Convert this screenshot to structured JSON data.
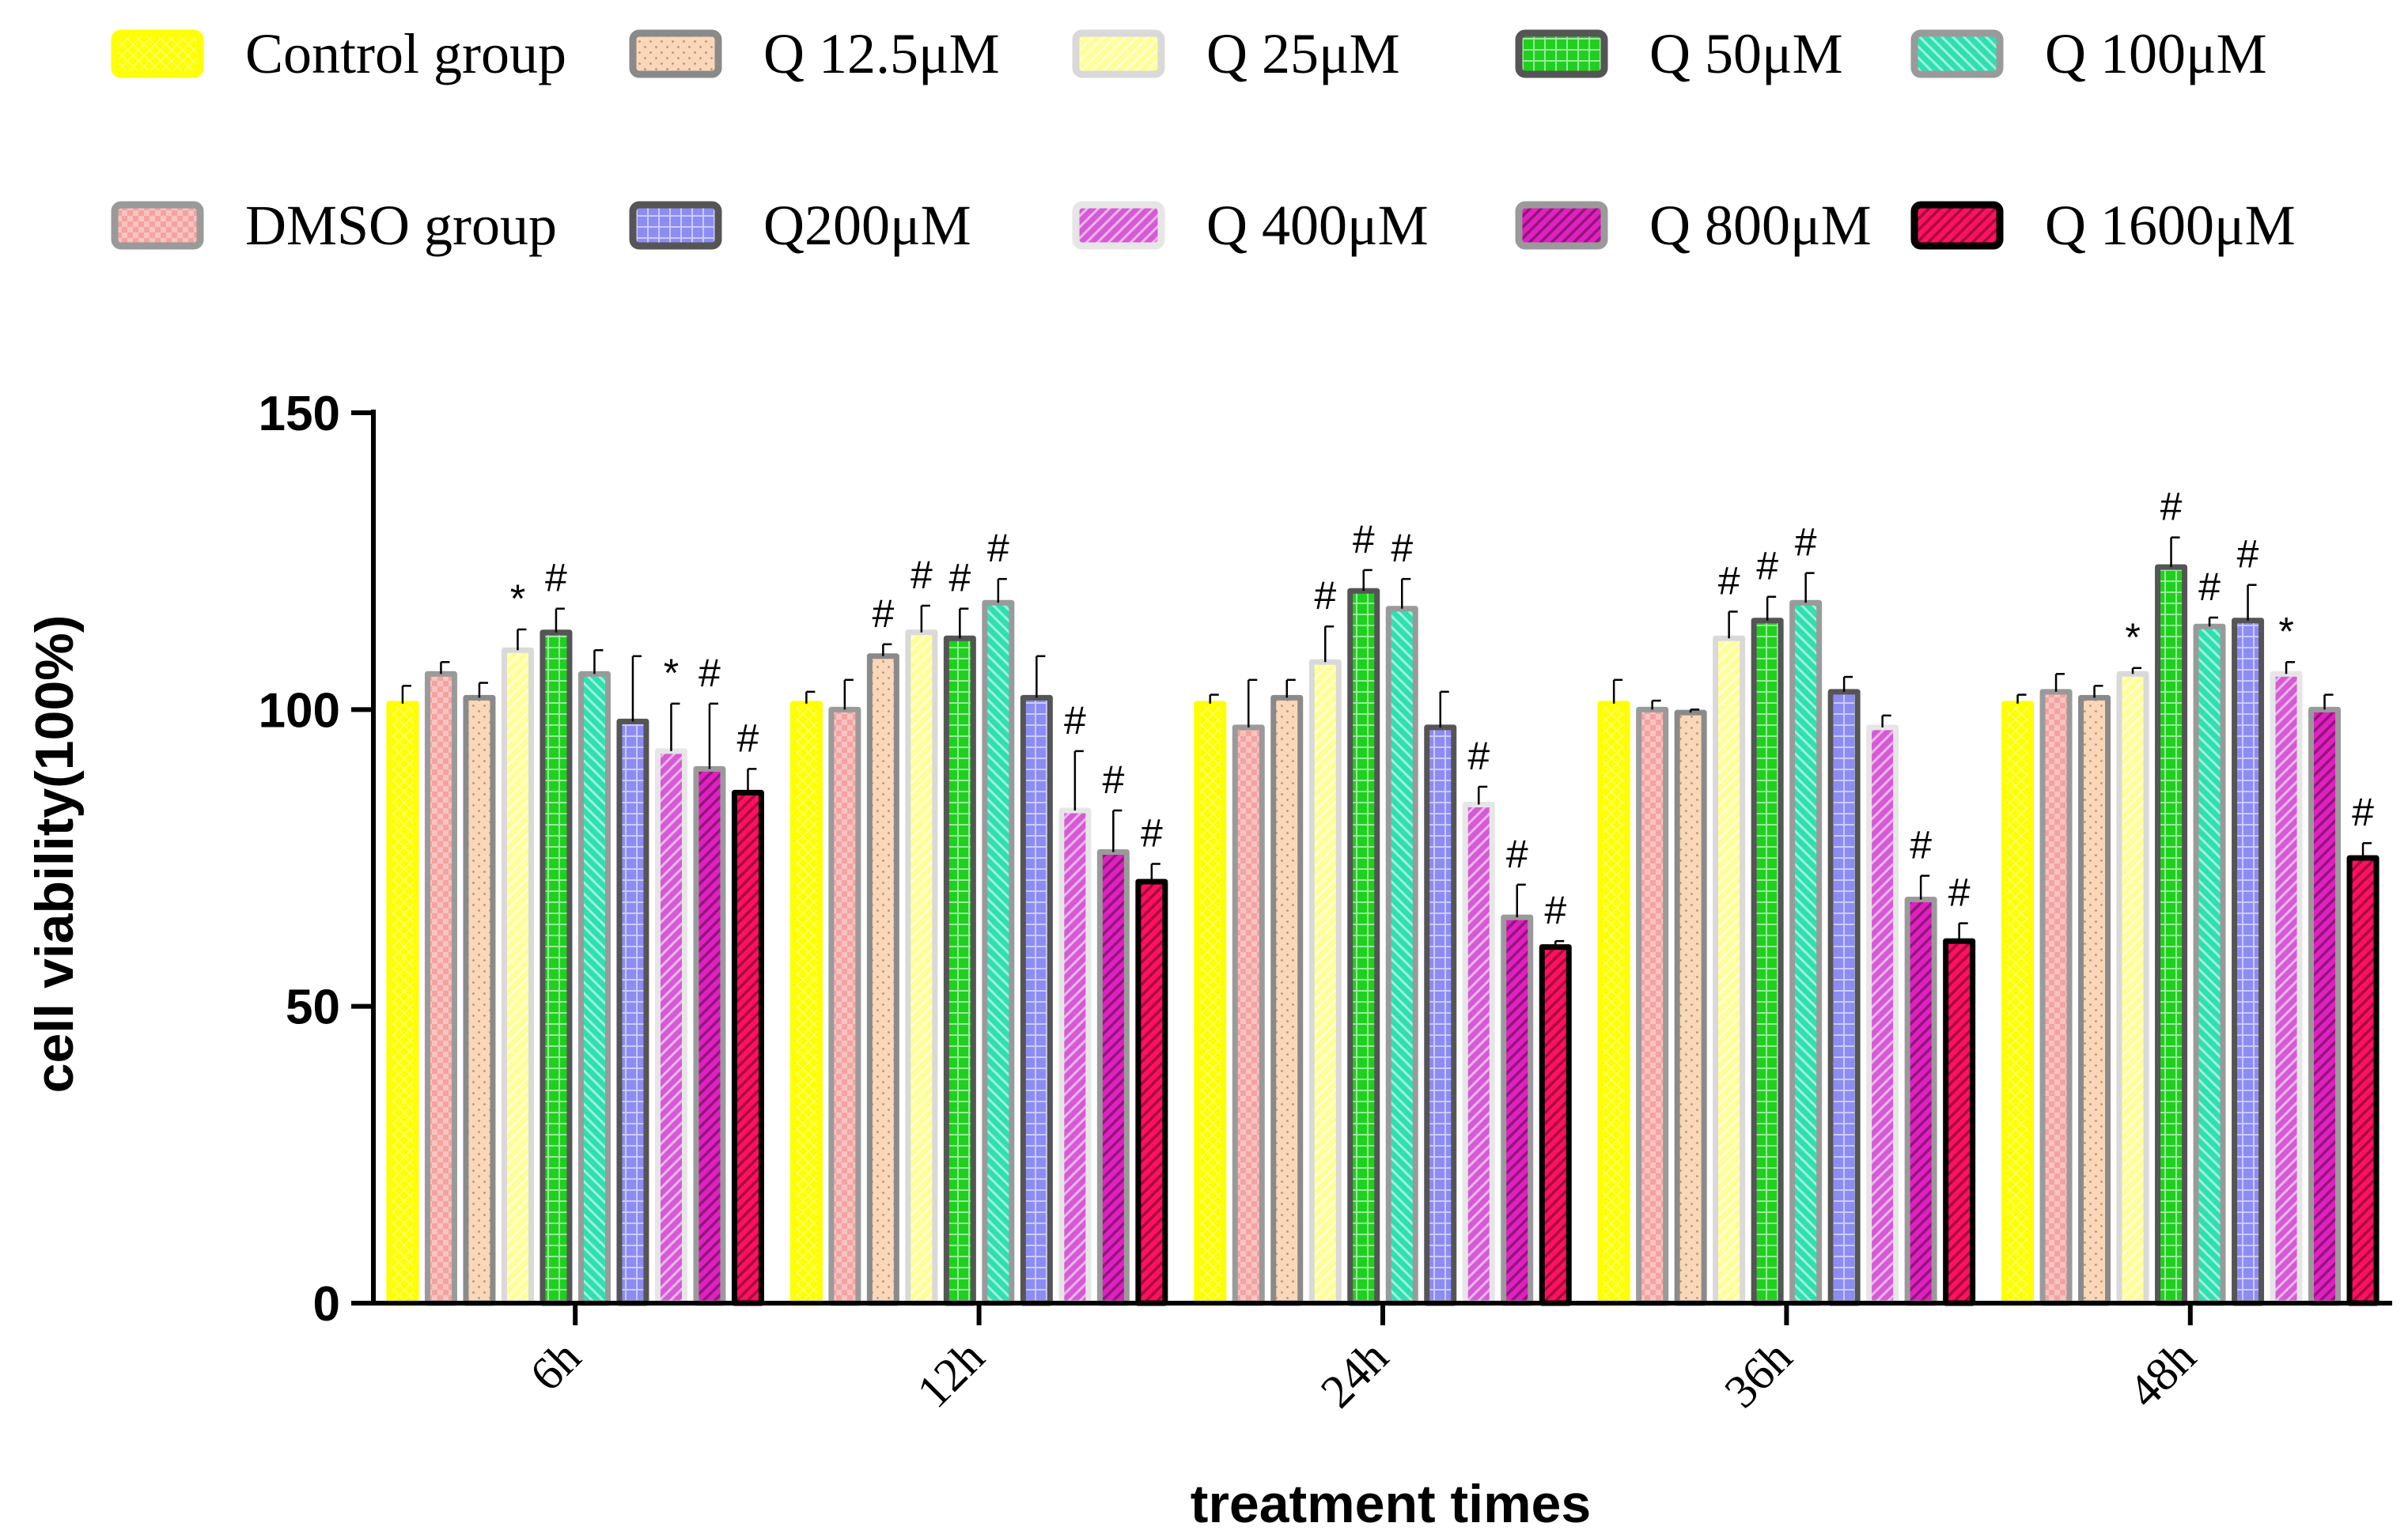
{
  "chart_data": {
    "type": "bar",
    "title": "",
    "xlabel": "treatment times",
    "ylabel": "cell viability(100%)",
    "ylim": [
      0,
      150
    ],
    "yticks": [
      0,
      50,
      100,
      150
    ],
    "grid": false,
    "legend_position": "top",
    "categories": [
      "6h",
      "12h",
      "24h",
      "36h",
      "48h"
    ],
    "series": [
      {
        "name": "Control group",
        "fill": "#ffff00",
        "border": "#ffff00",
        "pattern": "crosshatch",
        "values": [
          101,
          101,
          101,
          101,
          101
        ],
        "errors": [
          3,
          2,
          1.5,
          4,
          1.5
        ],
        "marks": [
          "",
          "",
          "",
          "",
          ""
        ]
      },
      {
        "name": "DMSO group",
        "fill": "#f4a3a0",
        "border": "#9a9a9a",
        "pattern": "checker",
        "values": [
          106,
          100,
          97,
          100,
          103
        ],
        "errors": [
          2,
          5,
          8,
          1.5,
          3
        ],
        "marks": [
          "",
          "",
          "",
          "",
          ""
        ]
      },
      {
        "name": "Q 12.5μM",
        "fill": "#f9d7b8",
        "border": "#8a8a8a",
        "pattern": "dots",
        "values": [
          102,
          109,
          102,
          99.5,
          102
        ],
        "errors": [
          2.5,
          2,
          3,
          0.5,
          2
        ],
        "marks": [
          "",
          "#",
          "",
          "",
          ""
        ]
      },
      {
        "name": "Q 25μM",
        "fill": "#ffff99",
        "border": "#d9d9d9",
        "pattern": "diag",
        "values": [
          110,
          113,
          108,
          112,
          106
        ],
        "errors": [
          3.5,
          4.5,
          6,
          4.5,
          1
        ],
        "marks": [
          "*",
          "#",
          "#",
          "#",
          "*"
        ]
      },
      {
        "name": "Q 50μM",
        "fill": "#1fd01f",
        "border": "#555555",
        "pattern": "grid",
        "values": [
          113,
          112,
          120,
          115,
          124
        ],
        "errors": [
          4,
          5,
          3.5,
          4,
          5
        ],
        "marks": [
          "#",
          "#",
          "#",
          "#",
          "#"
        ]
      },
      {
        "name": "Q 100μM",
        "fill": "#2ee0b0",
        "border": "#9a9a9a",
        "pattern": "diag2",
        "values": [
          106,
          118,
          117,
          118,
          114
        ],
        "errors": [
          4,
          4,
          5,
          5,
          1.5
        ],
        "marks": [
          "",
          "#",
          "#",
          "#",
          "#"
        ]
      },
      {
        "name": "Q200μM",
        "fill": "#8c8cf5",
        "border": "#555555",
        "pattern": "grid",
        "values": [
          98,
          102,
          97,
          103,
          115
        ],
        "errors": [
          11,
          7,
          6,
          2.5,
          6
        ],
        "marks": [
          "",
          "",
          "",
          "",
          "#"
        ]
      },
      {
        "name": "Q 400μM",
        "fill": "#d65ad6",
        "border": "#e6e6e6",
        "pattern": "diag",
        "values": [
          93,
          83,
          84,
          97,
          106
        ],
        "errors": [
          8,
          10,
          3,
          2,
          2
        ],
        "marks": [
          "*",
          "#",
          "#",
          "",
          "*"
        ]
      },
      {
        "name": "Q 800μM",
        "fill": "#e020c0",
        "border": "#9a9a9a",
        "pattern": "diag3",
        "values": [
          90,
          76,
          65,
          68,
          100
        ],
        "errors": [
          11,
          7,
          5.5,
          4,
          2.5
        ],
        "marks": [
          "#",
          "#",
          "#",
          "#",
          ""
        ]
      },
      {
        "name": "Q 1600μM",
        "fill": "#ff1060",
        "border": "#000000",
        "pattern": "diag3",
        "values": [
          86,
          71,
          60,
          61,
          75
        ],
        "errors": [
          4,
          3,
          1,
          3,
          2.5
        ],
        "marks": [
          "#",
          "#",
          "#",
          "#",
          "#"
        ]
      }
    ],
    "legend_rows": [
      [
        "Control group",
        "Q 12.5μM",
        "Q 25μM",
        "Q 50μM",
        "Q 100μM"
      ],
      [
        "DMSO group",
        "Q200μM",
        "Q 400μM",
        "Q 800μM",
        "Q 1600μM"
      ]
    ]
  }
}
